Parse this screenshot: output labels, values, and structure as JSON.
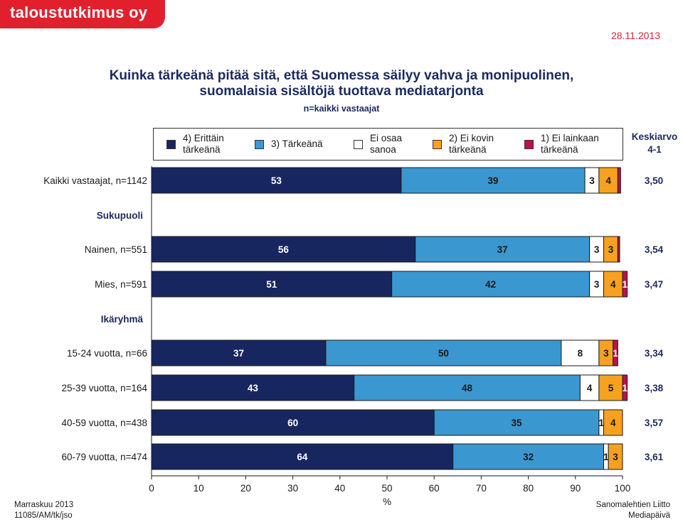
{
  "logo": "taloustutkimus oy",
  "date": "28.11.2013",
  "footer": {
    "left_line1": "Marraskuu 2013",
    "left_line2": "11085/AM/tk/jso",
    "right_line1": "Sanomalehtien Liitto",
    "right_line2": "Mediapäivä"
  },
  "keskiarvo_header": {
    "line1": "Keskiarvo",
    "line2": "4-1"
  },
  "colors": {
    "erittain": "#182660",
    "tarkea": "#3b97d0",
    "eiosaa": "#ffffff",
    "eikovin": "#f6a11f",
    "eilainkaan": "#b8144b"
  },
  "chart_data": {
    "type": "bar",
    "orientation": "horizontal-stacked-100",
    "title": "Kuinka tärkeänä pitää sitä, että Suomessa säilyy vahva ja monipuolinen, suomalaisia sisältöjä tuottava mediatarjonta",
    "title_line1": "Kuinka tärkeänä pitää sitä, että Suomessa säilyy vahva ja monipuolinen,",
    "title_line2": "suomalaisia sisältöjä tuottava mediatarjonta",
    "subtitle": "n=kaikki vastaajat",
    "xlabel": "%",
    "xlim": [
      0,
      100
    ],
    "xticks": [
      "0",
      "10",
      "20",
      "30",
      "40",
      "50",
      "60",
      "70",
      "80",
      "90",
      "100"
    ],
    "series": [
      {
        "name": "4) Erittäin tärkeänä",
        "label_line1": "4) Erittäin",
        "label_line2": "tärkeänä",
        "color": "#182660"
      },
      {
        "name": "3) Tärkeänä",
        "label_line1": "3) Tärkeänä",
        "label_line2": "",
        "color": "#3b97d0"
      },
      {
        "name": "Ei osaa sanoa",
        "label_line1": "Ei osaa",
        "label_line2": "sanoa",
        "color": "#ffffff"
      },
      {
        "name": "2) Ei kovin tärkeänä",
        "label_line1": "2) Ei kovin",
        "label_line2": "tärkeänä",
        "color": "#f6a11f"
      },
      {
        "name": "1) Ei lainkaan tärkeänä",
        "label_line1": "1) Ei lainkaan",
        "label_line2": "tärkeänä",
        "color": "#b8144b"
      }
    ],
    "rows": [
      {
        "kind": "bar",
        "label": "Kaikki vastaajat, n=1142",
        "values": [
          53,
          39,
          3,
          4,
          0.6
        ],
        "labels": [
          "53",
          "39",
          "3",
          "4",
          ""
        ],
        "mean": "3,50"
      },
      {
        "kind": "header",
        "label": "Sukupuoli"
      },
      {
        "kind": "bar",
        "label": "Nainen, n=551",
        "values": [
          56,
          37,
          3,
          3,
          0.4
        ],
        "labels": [
          "56",
          "37",
          "3",
          "3",
          ""
        ],
        "mean": "3,54"
      },
      {
        "kind": "bar",
        "label": "Mies, n=591",
        "values": [
          51,
          42,
          3,
          4,
          1
        ],
        "labels": [
          "51",
          "42",
          "3",
          "4",
          "1"
        ],
        "mean": "3,47"
      },
      {
        "kind": "header",
        "label": "Ikäryhmä"
      },
      {
        "kind": "bar",
        "label": "15-24 vuotta, n=66",
        "values": [
          37,
          50,
          8,
          3,
          1
        ],
        "labels": [
          "37",
          "50",
          "8",
          "3",
          "1"
        ],
        "mean": "3,34"
      },
      {
        "kind": "bar",
        "label": "25-39 vuotta, n=164",
        "values": [
          43,
          48,
          4,
          5,
          1
        ],
        "labels": [
          "43",
          "48",
          "4",
          "5",
          "1"
        ],
        "mean": "3,38"
      },
      {
        "kind": "bar",
        "label": "40-59 vuotta, n=438",
        "values": [
          60,
          35,
          1,
          4,
          0
        ],
        "labels": [
          "60",
          "35",
          "1",
          "4",
          ""
        ],
        "mean": "3,57"
      },
      {
        "kind": "bar",
        "label": "60-79 vuotta, n=474",
        "values": [
          64,
          32,
          1,
          3,
          0
        ],
        "labels": [
          "64",
          "32",
          "1",
          "3",
          ""
        ],
        "mean": "3,61"
      }
    ]
  }
}
